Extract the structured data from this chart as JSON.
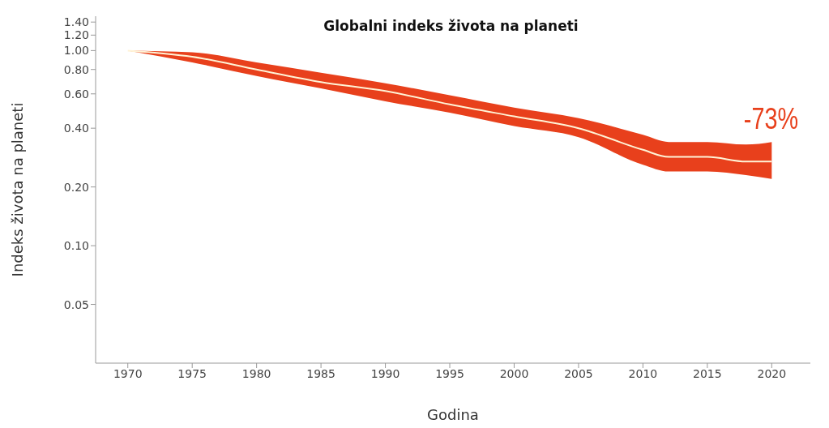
{
  "chart_data": {
    "type": "line",
    "title": "Globalni indeks života na planeti",
    "xlabel": "Godina",
    "ylabel": "Indeks života na planeti",
    "x": [
      1970,
      1975,
      1980,
      1985,
      1990,
      1995,
      2000,
      2005,
      2010,
      2012,
      2015,
      2018,
      2020
    ],
    "series": [
      {
        "color": "#fff3d6",
        "values": [
          1.0,
          0.93,
          0.8,
          0.69,
          0.62,
          0.53,
          0.46,
          0.4,
          0.31,
          0.285,
          0.285,
          0.27,
          0.27
        ],
        "lower": [
          1.0,
          0.87,
          0.74,
          0.64,
          0.55,
          0.48,
          0.41,
          0.36,
          0.26,
          0.24,
          0.24,
          0.23,
          0.22
        ],
        "upper": [
          1.0,
          0.98,
          0.87,
          0.77,
          0.68,
          0.59,
          0.51,
          0.45,
          0.37,
          0.34,
          0.34,
          0.33,
          0.34
        ]
      }
    ],
    "log": "y",
    "xlim": [
      1967.5,
      2023
    ],
    "xticks": [
      1970,
      1975,
      1980,
      1985,
      1990,
      1995,
      2000,
      2005,
      2010,
      2015,
      2020
    ],
    "ylim": [
      0.025,
      1.5
    ],
    "yticks": [
      {
        "value": 0.05,
        "label": "0.05"
      },
      {
        "value": 0.1,
        "label": "0.10"
      },
      {
        "value": 0.2,
        "label": "0.20"
      },
      {
        "value": 0.4,
        "label": "0.40"
      },
      {
        "value": 0.6,
        "label": "0.60"
      },
      {
        "value": 0.8,
        "label": "0.80"
      },
      {
        "value": 1,
        "label": "1.00"
      },
      {
        "value": 1.2,
        "label": "1.20"
      },
      {
        "value": 1.4,
        "label": "1.40"
      }
    ],
    "annotations": [
      "-73%"
    ],
    "grid": false,
    "legend": false
  }
}
